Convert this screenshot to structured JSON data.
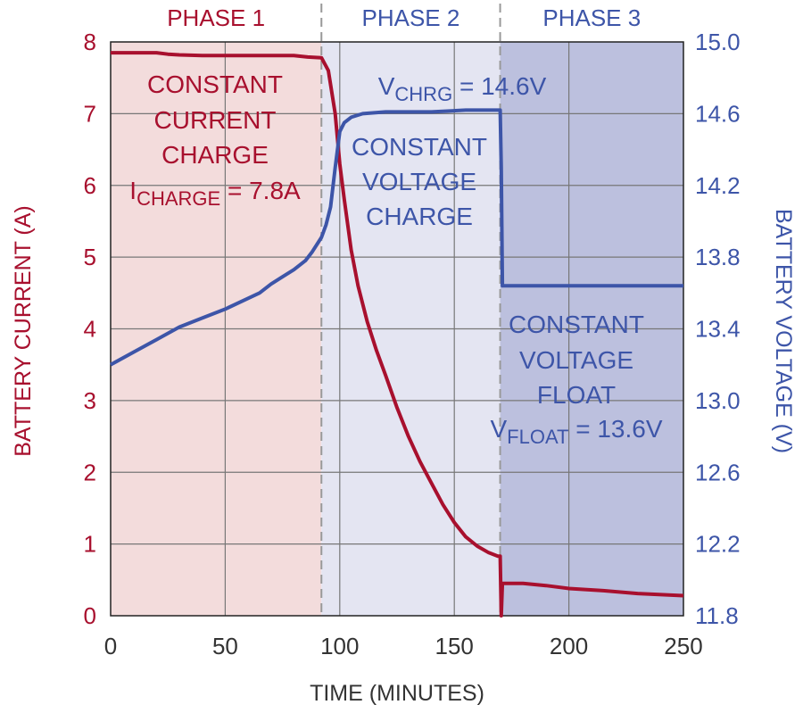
{
  "chart_data": {
    "type": "line",
    "xlabel": "TIME (MINUTES)",
    "ylabel_left": "BATTERY CURRENT (A)",
    "ylabel_right": "BATTERY VOLTAGE (V)",
    "xlim": [
      0,
      250
    ],
    "ylim_left": [
      0,
      8
    ],
    "ylim_right": [
      11.8,
      15.0
    ],
    "x_ticks": [
      "0",
      "50",
      "100",
      "150",
      "200",
      "250"
    ],
    "y_ticks_left": [
      "0",
      "1",
      "2",
      "3",
      "4",
      "5",
      "6",
      "7",
      "8"
    ],
    "y_ticks_right": [
      "11.8",
      "12.2",
      "12.6",
      "13.0",
      "13.4",
      "13.8",
      "14.2",
      "14.6",
      "15.0"
    ],
    "grid": true,
    "phases": [
      {
        "label": "PHASE 1",
        "x_start": 0,
        "x_end": 92,
        "color": "#f3dcdc"
      },
      {
        "label": "PHASE 2",
        "x_start": 92,
        "x_end": 170,
        "color": "#e4e5f2"
      },
      {
        "label": "PHASE 3",
        "x_start": 170,
        "x_end": 250,
        "color": "#bcc0de"
      }
    ],
    "series": [
      {
        "axis": "left",
        "color": "#a8102e",
        "points": [
          [
            0,
            7.85
          ],
          [
            20,
            7.85
          ],
          [
            25,
            7.83
          ],
          [
            30,
            7.82
          ],
          [
            40,
            7.81
          ],
          [
            60,
            7.81
          ],
          [
            80,
            7.81
          ],
          [
            86,
            7.79
          ],
          [
            92,
            7.78
          ],
          [
            95,
            7.6
          ],
          [
            98,
            7.0
          ],
          [
            100,
            6.3
          ],
          [
            102,
            5.8
          ],
          [
            105,
            5.1
          ],
          [
            108,
            4.6
          ],
          [
            112,
            4.1
          ],
          [
            116,
            3.7
          ],
          [
            120,
            3.35
          ],
          [
            125,
            2.9
          ],
          [
            130,
            2.5
          ],
          [
            135,
            2.15
          ],
          [
            140,
            1.85
          ],
          [
            145,
            1.55
          ],
          [
            150,
            1.3
          ],
          [
            155,
            1.1
          ],
          [
            160,
            0.97
          ],
          [
            165,
            0.88
          ],
          [
            169,
            0.83
          ],
          [
            170,
            0.83
          ],
          [
            170.5,
            0.0
          ],
          [
            171,
            0.45
          ],
          [
            180,
            0.45
          ],
          [
            190,
            0.42
          ],
          [
            200,
            0.38
          ],
          [
            215,
            0.35
          ],
          [
            230,
            0.31
          ],
          [
            250,
            0.28
          ]
        ]
      },
      {
        "axis": "right",
        "color": "#3d55a8",
        "points": [
          [
            0,
            13.2
          ],
          [
            10,
            13.27
          ],
          [
            20,
            13.34
          ],
          [
            30,
            13.41
          ],
          [
            40,
            13.46
          ],
          [
            50,
            13.51
          ],
          [
            60,
            13.57
          ],
          [
            65,
            13.6
          ],
          [
            70,
            13.65
          ],
          [
            75,
            13.69
          ],
          [
            80,
            13.73
          ],
          [
            85,
            13.78
          ],
          [
            88,
            13.83
          ],
          [
            92,
            13.91
          ],
          [
            94,
            13.98
          ],
          [
            96,
            14.08
          ],
          [
            98,
            14.3
          ],
          [
            100,
            14.5
          ],
          [
            102,
            14.55
          ],
          [
            105,
            14.58
          ],
          [
            110,
            14.6
          ],
          [
            120,
            14.61
          ],
          [
            140,
            14.61
          ],
          [
            155,
            14.62
          ],
          [
            170,
            14.62
          ],
          [
            170.5,
            14.3
          ],
          [
            171,
            13.64
          ],
          [
            200,
            13.64
          ],
          [
            250,
            13.64
          ]
        ]
      }
    ],
    "annotations": {
      "phase1": [
        "CONSTANT",
        "CURRENT",
        "CHARGE"
      ],
      "phase1_i_main": "I",
      "phase1_i_sub": "CHARGE",
      "phase1_i_value": " = 7.8A",
      "phase2": [
        "CONSTANT",
        "VOLTAGE",
        "CHARGE"
      ],
      "phase2_v_main": "V",
      "phase2_v_sub": "CHRG",
      "phase2_v_value": " = 14.6V",
      "phase3": [
        "CONSTANT",
        "VOLTAGE",
        "FLOAT"
      ],
      "phase3_v_main": "V",
      "phase3_v_sub": "FLOAT",
      "phase3_v_value": " = 13.6V"
    },
    "colors": {
      "current": "#a8102e",
      "voltage": "#3d55a8",
      "axis_text": "#333333",
      "grid": "#777777",
      "phase_divider": "#999999"
    }
  }
}
